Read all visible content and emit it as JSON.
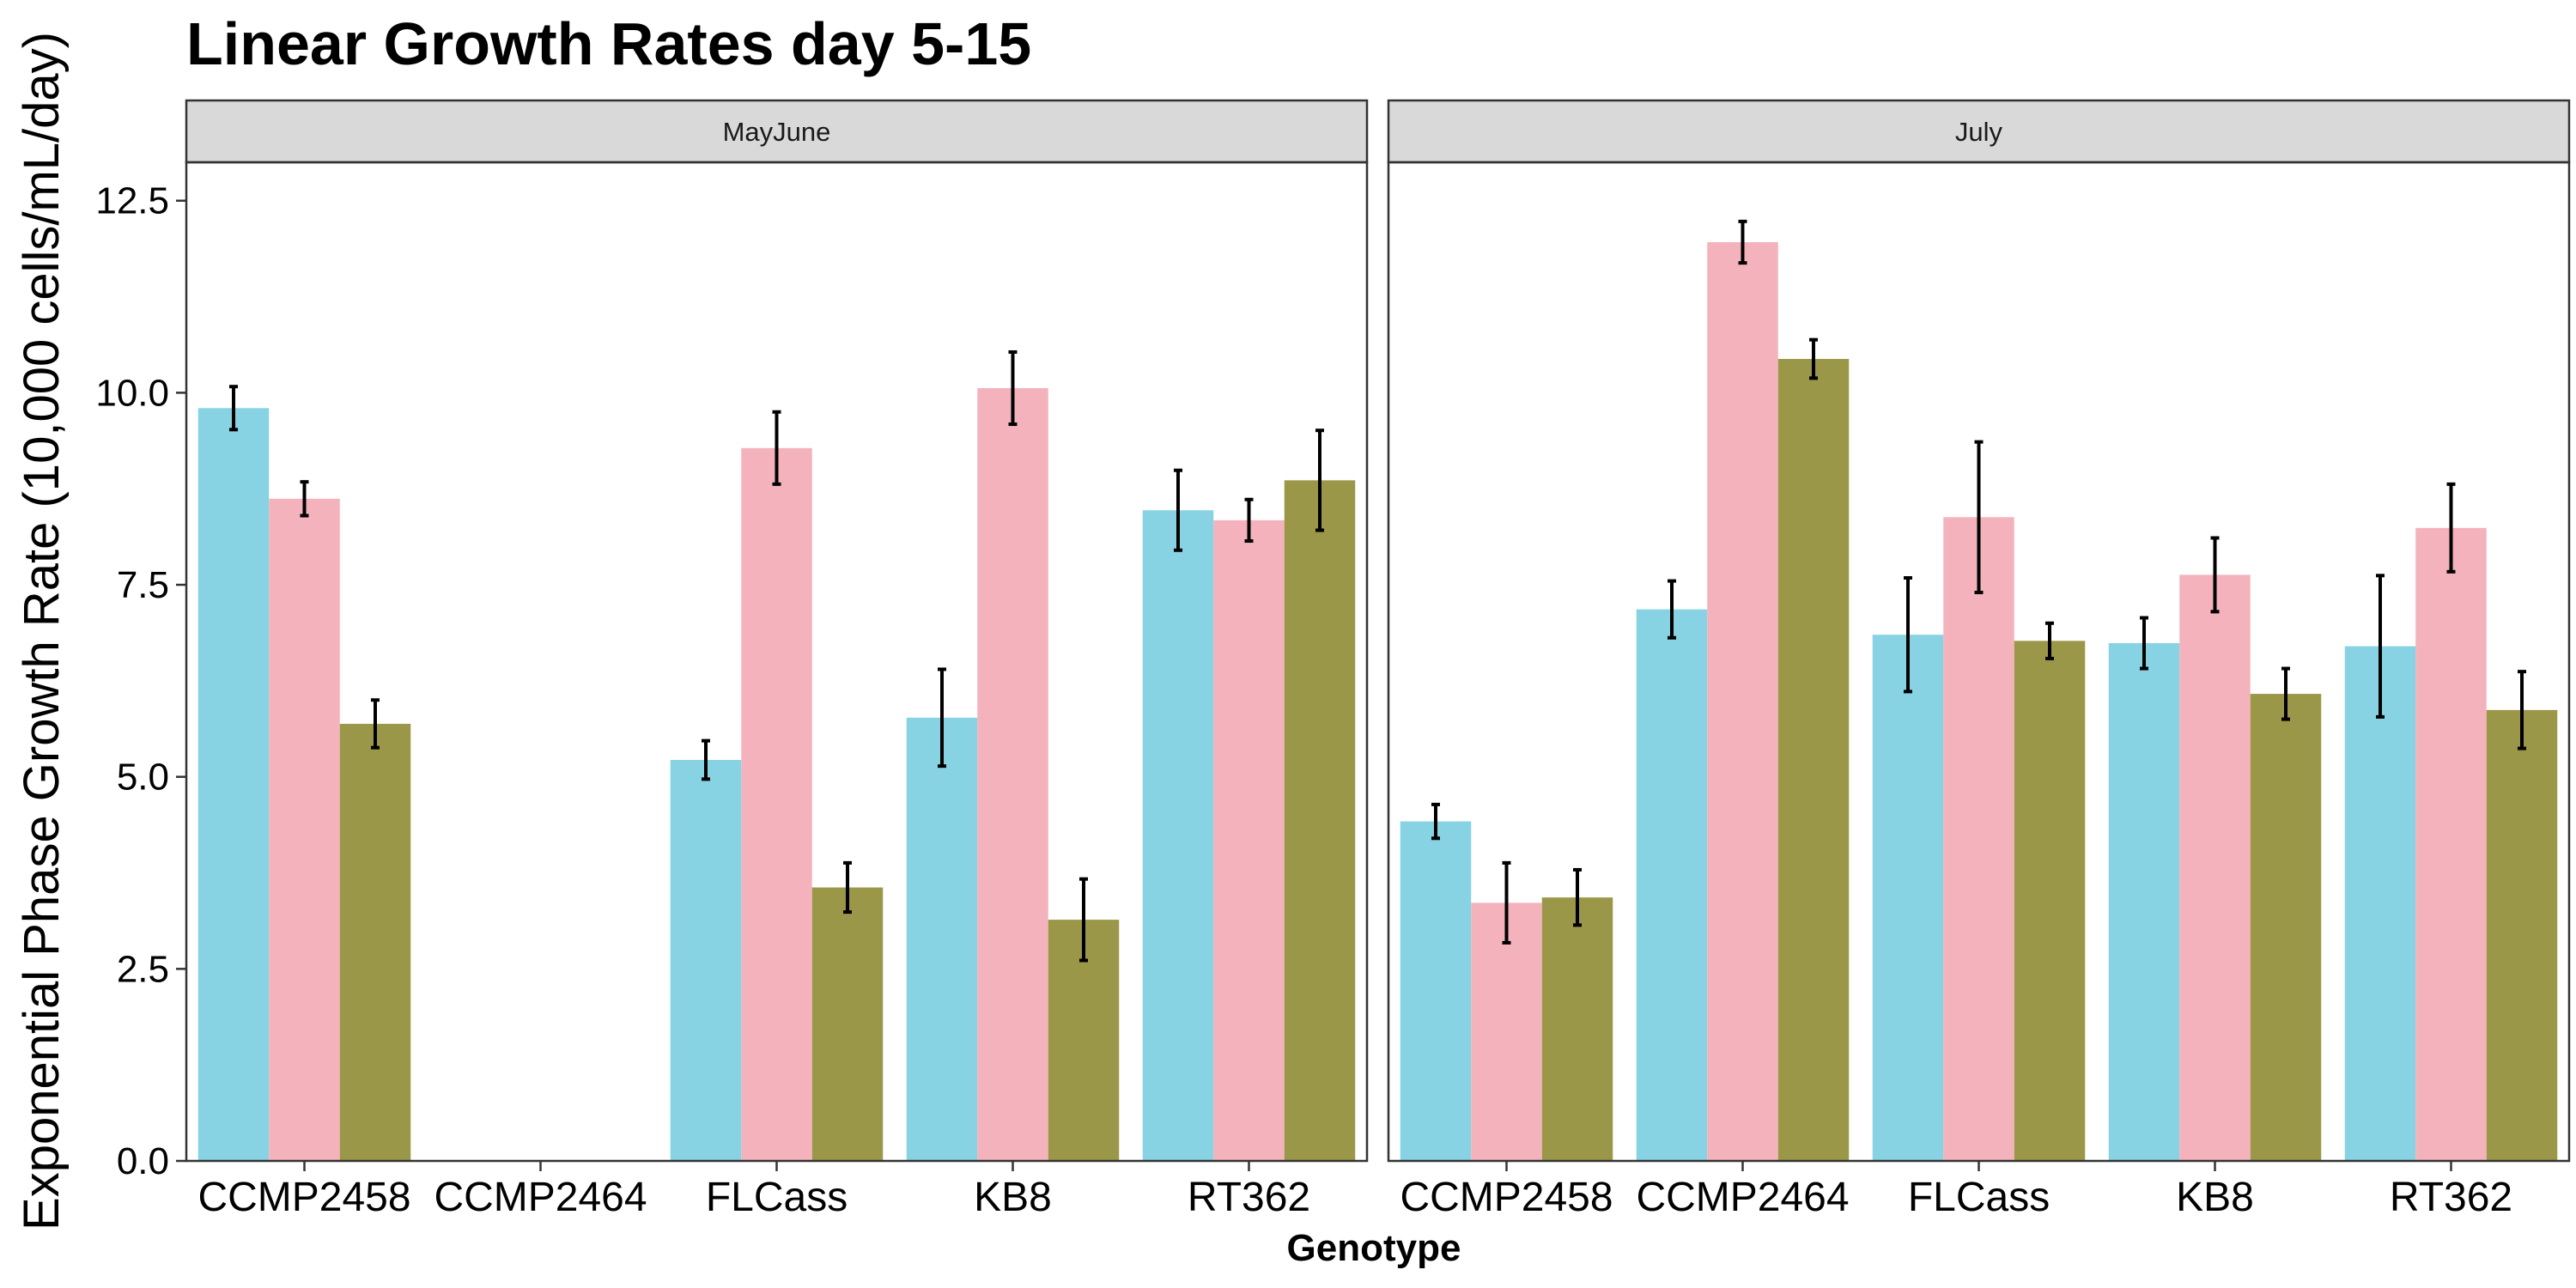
{
  "chart_data": {
    "type": "bar",
    "title": "Linear Growth Rates day 5-15",
    "xlabel": "Genotype",
    "ylabel": "Exponential Phase Growth Rate (10,000 cells/mL/day)",
    "ylim": [
      0,
      13
    ],
    "yticks": [
      0,
      2.5,
      5,
      7.5,
      10,
      12.5
    ],
    "ytick_labels": [
      "0.0",
      "2.5",
      "5.0",
      "7.5",
      "10.0",
      "12.5"
    ],
    "categories": [
      "CCMP2458",
      "CCMP2464",
      "FLCass",
      "KB8",
      "RT362"
    ],
    "series_colors": [
      "#87d3e3",
      "#f4b3bc",
      "#9b9749"
    ],
    "grid": false,
    "legend": "none",
    "panels": [
      {
        "label": "MayJune",
        "series": [
          {
            "values": [
              9.8,
              null,
              5.22,
              5.77,
              8.47
            ],
            "errors": [
              0.28,
              null,
              0.25,
              0.63,
              0.52
            ]
          },
          {
            "values": [
              8.62,
              null,
              9.28,
              10.06,
              8.34
            ],
            "errors": [
              0.22,
              null,
              0.47,
              0.47,
              0.27
            ]
          },
          {
            "values": [
              5.69,
              null,
              3.56,
              3.14,
              8.86
            ],
            "errors": [
              0.31,
              null,
              0.32,
              0.53,
              0.65
            ]
          }
        ]
      },
      {
        "label": "July",
        "series": [
          {
            "values": [
              4.42,
              7.18,
              6.85,
              6.74,
              6.7
            ],
            "errors": [
              0.22,
              0.37,
              0.74,
              0.33,
              0.92
            ]
          },
          {
            "values": [
              3.36,
              11.96,
              8.38,
              7.63,
              8.24
            ],
            "errors": [
              0.52,
              0.27,
              0.98,
              0.48,
              0.57
            ]
          },
          {
            "values": [
              3.43,
              10.44,
              6.77,
              6.08,
              5.87
            ],
            "errors": [
              0.36,
              0.25,
              0.23,
              0.33,
              0.5
            ]
          }
        ]
      }
    ]
  }
}
